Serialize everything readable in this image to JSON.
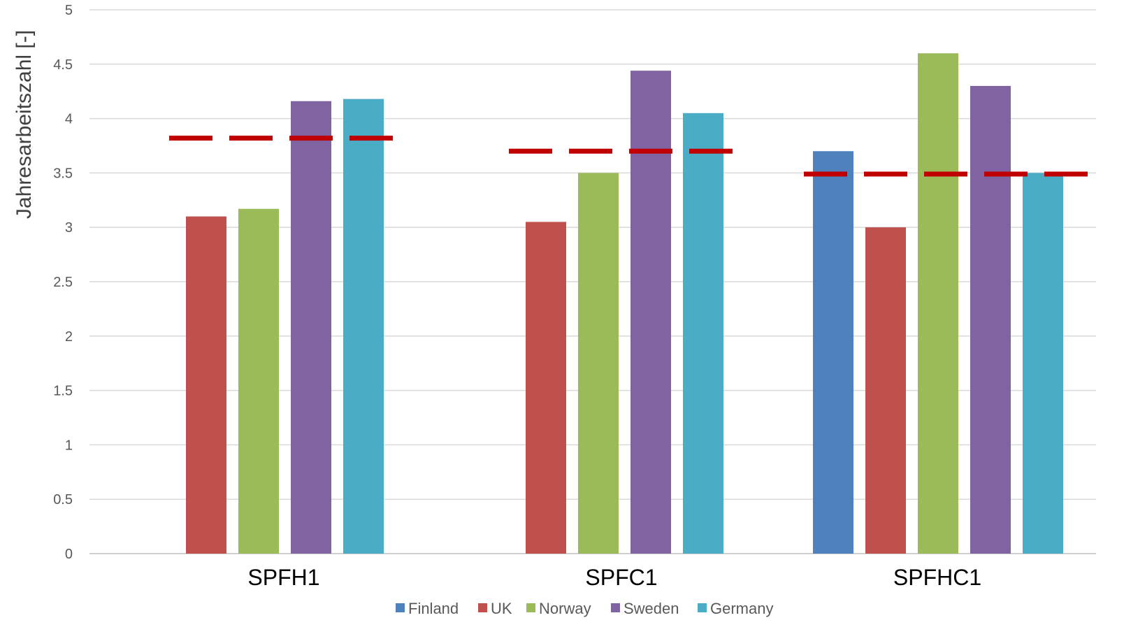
{
  "chart_data": {
    "type": "bar",
    "title": "",
    "xlabel": "",
    "ylabel": "Jahresarbeitszahl [-]",
    "ylim": [
      0,
      5
    ],
    "yticks": [
      "0",
      "0.5",
      "1",
      "1.5",
      "2",
      "2.5",
      "3",
      "3.5",
      "4",
      "4.5",
      "5"
    ],
    "grid": true,
    "legend_position": "bottom",
    "categories": [
      "SPFH1",
      "SPFC1",
      "SPFHC1"
    ],
    "series": [
      {
        "name": "Finland",
        "color": "#4F81BD",
        "values": [
          null,
          null,
          3.7
        ]
      },
      {
        "name": "UK",
        "color": "#C0504D",
        "values": [
          3.1,
          3.05,
          3.0
        ]
      },
      {
        "name": "Norway",
        "color": "#9BBB59",
        "values": [
          3.17,
          3.5,
          4.6
        ]
      },
      {
        "name": "Sweden",
        "color": "#8064A2",
        "values": [
          4.16,
          4.44,
          4.3
        ]
      },
      {
        "name": "Germany",
        "color": "#4BACC6",
        "values": [
          4.18,
          4.05,
          3.5
        ]
      }
    ],
    "reference_lines": {
      "style": "dashed",
      "color": "#C00000",
      "values": [
        3.82,
        3.7,
        3.49
      ]
    }
  }
}
